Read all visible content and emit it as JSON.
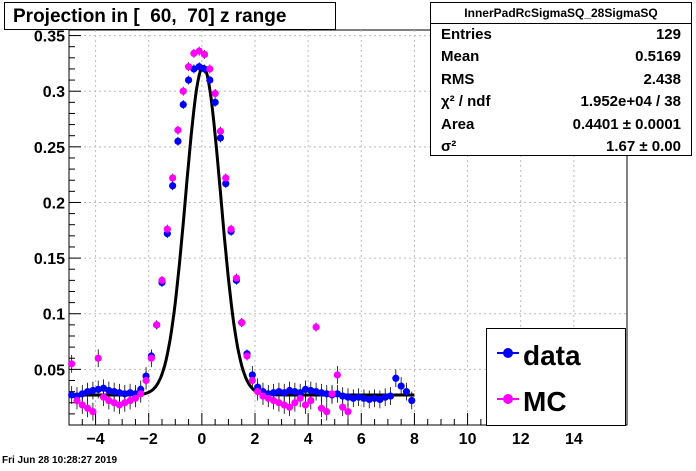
{
  "title": "Projection in [  60,  70] z range",
  "stats": {
    "name": "InnerPadRcSigmaSQ_28SigmaSQ",
    "rows": [
      {
        "key": "Entries",
        "value": "129"
      },
      {
        "key": "Mean",
        "value": "0.5169"
      },
      {
        "key": "RMS",
        "value": "2.438"
      },
      {
        "key": "χ² / ndf",
        "value": "1.952e+04 / 38"
      },
      {
        "key": "Area",
        "value": "0.4401 ± 0.0001"
      },
      {
        "key": "σ²",
        "value": "1.67 ± 0.00"
      }
    ]
  },
  "footer": "Fri Jun 28 10:28:27 2019",
  "colors": {
    "data": "#0000ff",
    "mc": "#ff00ff",
    "fit": "#000000"
  },
  "chart_data": {
    "type": "scatter",
    "xlim": [
      -5,
      16
    ],
    "ylim": [
      0,
      0.355
    ],
    "x_ticks": [
      -4,
      -2,
      0,
      2,
      4,
      6,
      8,
      10,
      12,
      14
    ],
    "x_tick_labels": [
      "−4",
      "−2",
      "0",
      "2",
      "4",
      "6",
      "8",
      "10",
      "12",
      "14"
    ],
    "y_ticks": [
      0.05,
      0.1,
      0.15,
      0.2,
      0.25,
      0.3,
      0.35
    ],
    "y_tick_labels": [
      "0.05",
      "0.1",
      "0.15",
      "0.2",
      "0.25",
      "0.3",
      "0.35"
    ],
    "legend": [
      {
        "name": "data"
      },
      {
        "name": "MC"
      }
    ],
    "series": [
      {
        "name": "data",
        "color": "#0000ff",
        "x": [
          -4.9,
          -4.7,
          -4.5,
          -4.3,
          -4.1,
          -3.9,
          -3.7,
          -3.5,
          -3.3,
          -3.1,
          -2.9,
          -2.7,
          -2.5,
          -2.3,
          -2.1,
          -1.9,
          -1.7,
          -1.5,
          -1.3,
          -1.1,
          -0.9,
          -0.7,
          -0.5,
          -0.3,
          -0.1,
          0.1,
          0.3,
          0.5,
          0.7,
          0.9,
          1.1,
          1.3,
          1.5,
          1.7,
          1.9,
          2.1,
          2.3,
          2.5,
          2.7,
          2.9,
          3.1,
          3.3,
          3.5,
          3.7,
          3.9,
          4.1,
          4.3,
          4.5,
          4.7,
          4.9,
          5.1,
          5.3,
          5.5,
          5.7,
          5.9,
          6.1,
          6.3,
          6.5,
          6.7,
          6.9,
          7.1,
          7.3,
          7.5,
          7.7,
          7.9
        ],
        "y": [
          0.027,
          0.026,
          0.028,
          0.03,
          0.031,
          0.032,
          0.033,
          0.031,
          0.03,
          0.029,
          0.028,
          0.029,
          0.028,
          0.032,
          0.044,
          0.062,
          0.09,
          0.128,
          0.172,
          0.215,
          0.255,
          0.288,
          0.31,
          0.32,
          0.322,
          0.32,
          0.31,
          0.29,
          0.258,
          0.217,
          0.174,
          0.13,
          0.092,
          0.064,
          0.045,
          0.034,
          0.03,
          0.028,
          0.029,
          0.03,
          0.029,
          0.031,
          0.03,
          0.029,
          0.032,
          0.031,
          0.03,
          0.029,
          0.028,
          0.027,
          0.028,
          0.026,
          0.025,
          0.024,
          0.025,
          0.024,
          0.023,
          0.024,
          0.023,
          0.025,
          0.026,
          0.042,
          0.035,
          0.03,
          0.022
        ]
      },
      {
        "name": "MC",
        "color": "#ff00ff",
        "x": [
          -4.9,
          -4.7,
          -4.5,
          -4.3,
          -4.1,
          -3.9,
          -3.7,
          -3.5,
          -3.3,
          -3.1,
          -2.9,
          -2.7,
          -2.5,
          -2.3,
          -2.1,
          -1.9,
          -1.7,
          -1.5,
          -1.3,
          -1.1,
          -0.9,
          -0.7,
          -0.5,
          -0.3,
          -0.1,
          0.1,
          0.3,
          0.5,
          0.7,
          0.9,
          1.1,
          1.3,
          1.5,
          1.7,
          1.9,
          2.1,
          2.3,
          2.5,
          2.7,
          2.9,
          3.1,
          3.3,
          3.5,
          3.7,
          3.9,
          4.1,
          4.3,
          4.5,
          4.7,
          4.9,
          5.1,
          5.3,
          5.5
        ],
        "y": [
          0.055,
          0.022,
          0.018,
          0.015,
          0.012,
          0.06,
          0.025,
          0.022,
          0.02,
          0.018,
          0.02,
          0.022,
          0.024,
          0.028,
          0.04,
          0.06,
          0.09,
          0.13,
          0.176,
          0.222,
          0.265,
          0.3,
          0.322,
          0.334,
          0.336,
          0.333,
          0.32,
          0.298,
          0.264,
          0.222,
          0.176,
          0.132,
          0.092,
          0.062,
          0.04,
          0.03,
          0.026,
          0.024,
          0.022,
          0.02,
          0.018,
          0.016,
          0.02,
          0.024,
          0.018,
          0.022,
          0.088,
          0.015,
          0.012,
          0.028,
          0.045,
          0.016,
          0.012
        ]
      }
    ],
    "fit": {
      "amplitude": 0.322,
      "mean": 0.05,
      "sigma": 0.66,
      "baseline": 0.027
    }
  }
}
